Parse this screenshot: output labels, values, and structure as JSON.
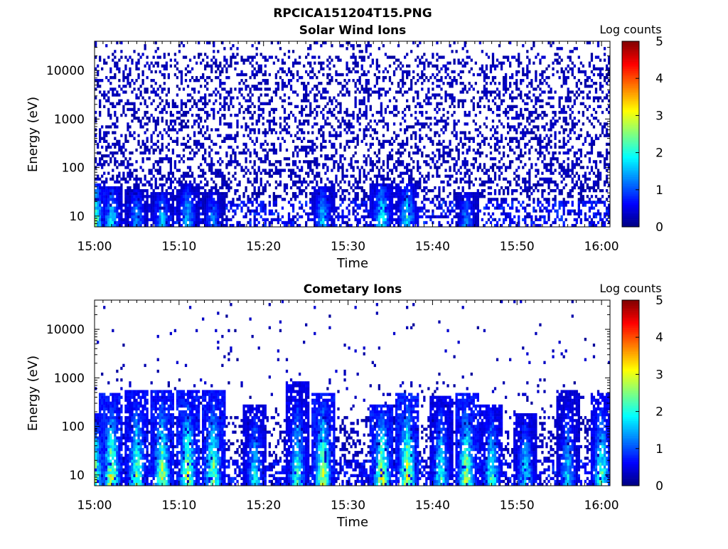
{
  "figure_title": "RPCICA151204T15.PNG",
  "chart_data": [
    {
      "type": "heatmap",
      "title": "Solar Wind Ions",
      "xlabel": "Time",
      "ylabel": "Energy (eV)",
      "x_ticks": [
        "15:00",
        "15:10",
        "15:20",
        "15:30",
        "15:40",
        "15:50",
        "16:00"
      ],
      "x_range": [
        "15:00",
        "16:01"
      ],
      "y_scale": "log",
      "y_ticks": [
        10,
        100,
        1000,
        10000
      ],
      "y_range": [
        6,
        40000
      ],
      "colorbar": {
        "label": "Log counts",
        "ticks": [
          0,
          1,
          2,
          3,
          4,
          5
        ],
        "range": [
          0,
          5
        ],
        "colormap": "jet"
      },
      "grid": false,
      "features": {
        "background_floor_log_counts": 0.3,
        "scattered_counts_up_to_eV": 40000,
        "bursts": [
          {
            "time": "15:00",
            "energy_max_eV": 50,
            "peak_log_counts": 2.6
          },
          {
            "time": "15:02",
            "energy_max_eV": 40,
            "peak_log_counts": 1.9
          },
          {
            "time": "15:05",
            "energy_max_eV": 35,
            "peak_log_counts": 1.5
          },
          {
            "time": "15:08",
            "energy_max_eV": 30,
            "peak_log_counts": 1.6
          },
          {
            "time": "15:11",
            "energy_max_eV": 45,
            "peak_log_counts": 1.7
          },
          {
            "time": "15:14",
            "energy_max_eV": 30,
            "peak_log_counts": 1.3
          },
          {
            "time": "15:27",
            "energy_max_eV": 40,
            "peak_log_counts": 1.7
          },
          {
            "time": "15:34",
            "energy_max_eV": 50,
            "peak_log_counts": 2.1
          },
          {
            "time": "15:37",
            "energy_max_eV": 45,
            "peak_log_counts": 2.0
          },
          {
            "time": "15:44",
            "energy_max_eV": 30,
            "peak_log_counts": 1.4
          }
        ]
      }
    },
    {
      "type": "heatmap",
      "title": "Cometary Ions",
      "xlabel": "Time",
      "ylabel": "Energy (eV)",
      "x_ticks": [
        "15:00",
        "15:10",
        "15:20",
        "15:30",
        "15:40",
        "15:50",
        "16:00"
      ],
      "x_range": [
        "15:00",
        "16:01"
      ],
      "y_scale": "log",
      "y_ticks": [
        10,
        100,
        1000,
        10000
      ],
      "y_range": [
        6,
        40000
      ],
      "colorbar": {
        "label": "Log counts",
        "ticks": [
          0,
          1,
          2,
          3,
          4,
          5
        ],
        "range": [
          0,
          5
        ],
        "colormap": "jet"
      },
      "grid": false,
      "features": {
        "background_floor_log_counts": 0.3,
        "scattered_counts_up_to_eV": 35000,
        "bursts": [
          {
            "time": "15:00",
            "energy_max_eV": 200,
            "peak_log_counts": 2.8
          },
          {
            "time": "15:02",
            "energy_max_eV": 500,
            "peak_log_counts": 3.0
          },
          {
            "time": "15:05",
            "energy_max_eV": 600,
            "peak_log_counts": 2.6
          },
          {
            "time": "15:08",
            "energy_max_eV": 600,
            "peak_log_counts": 2.8
          },
          {
            "time": "15:11",
            "energy_max_eV": 600,
            "peak_log_counts": 2.9
          },
          {
            "time": "15:14",
            "energy_max_eV": 600,
            "peak_log_counts": 2.8
          },
          {
            "time": "15:19",
            "energy_max_eV": 300,
            "peak_log_counts": 2.0
          },
          {
            "time": "15:24",
            "energy_max_eV": 800,
            "peak_log_counts": 2.2
          },
          {
            "time": "15:27",
            "energy_max_eV": 500,
            "peak_log_counts": 2.9
          },
          {
            "time": "15:34",
            "energy_max_eV": 300,
            "peak_log_counts": 3.0
          },
          {
            "time": "15:37",
            "energy_max_eV": 500,
            "peak_log_counts": 3.1
          },
          {
            "time": "15:41",
            "energy_max_eV": 400,
            "peak_log_counts": 2.2
          },
          {
            "time": "15:44",
            "energy_max_eV": 500,
            "peak_log_counts": 2.9
          },
          {
            "time": "15:47",
            "energy_max_eV": 300,
            "peak_log_counts": 2.3
          },
          {
            "time": "15:51",
            "energy_max_eV": 200,
            "peak_log_counts": 2.0
          },
          {
            "time": "15:56",
            "energy_max_eV": 600,
            "peak_log_counts": 1.8
          },
          {
            "time": "16:00",
            "energy_max_eV": 500,
            "peak_log_counts": 2.4
          }
        ]
      }
    }
  ]
}
